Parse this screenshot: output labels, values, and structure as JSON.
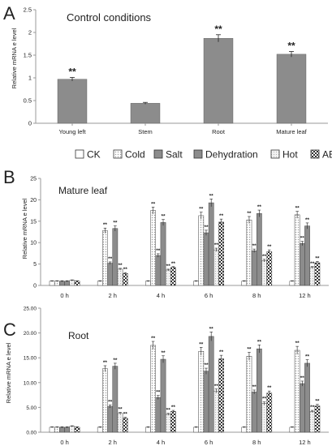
{
  "legend": {
    "entries": [
      {
        "label": "CK",
        "pattern": "white"
      },
      {
        "label": "Cold",
        "pattern": "dots"
      },
      {
        "label": "Salt",
        "pattern": "gray"
      },
      {
        "label": "Dehydration",
        "pattern": "gray"
      },
      {
        "label": "Hot",
        "pattern": "lightdots"
      },
      {
        "label": "ABA",
        "pattern": "checker"
      }
    ]
  },
  "colors": {
    "gray_bar": "#8c8c8c",
    "axis": "#9a9a9a",
    "text": "#222222"
  },
  "chart_data": [
    {
      "panel": "A",
      "type": "bar",
      "title": "Control conditions",
      "ylabel": "Relative mRNA e level",
      "ylim": [
        0,
        2.5
      ],
      "yticks": [
        "0",
        "0.5",
        "1",
        "1.5",
        "2",
        "2.5"
      ],
      "categories": [
        "Young left",
        "Stem",
        "Root",
        "Mature leaf"
      ],
      "values": [
        0.97,
        0.44,
        1.87,
        1.52
      ],
      "errors": [
        0.04,
        0.02,
        0.08,
        0.06
      ],
      "significance": [
        "**",
        "",
        "**",
        "**"
      ]
    },
    {
      "panel": "B",
      "type": "bar",
      "title": "Mature leaf",
      "ylabel": "Relative mRNA e level",
      "ylim": [
        0,
        25
      ],
      "yticks": [
        "0",
        "5",
        "10",
        "15",
        "20",
        "25"
      ],
      "categories": [
        "0 h",
        "2 h",
        "4 h",
        "6 h",
        "8 h",
        "12 h"
      ],
      "series": [
        {
          "name": "CK",
          "values": [
            1.0,
            1.0,
            1.0,
            1.0,
            1.0,
            1.0
          ],
          "errors": [
            0.1,
            0.1,
            0.1,
            0.1,
            0.1,
            0.1
          ],
          "significance": [
            "",
            "",
            "",
            "",
            "",
            ""
          ]
        },
        {
          "name": "Cold",
          "values": [
            1.0,
            12.8,
            17.5,
            16.3,
            15.3,
            16.5
          ],
          "errors": [
            0.1,
            0.6,
            0.8,
            0.8,
            0.8,
            0.8
          ],
          "significance": [
            "",
            "**",
            "**",
            "**",
            "**",
            "**"
          ]
        },
        {
          "name": "Salt",
          "values": [
            1.0,
            5.2,
            7.0,
            12.3,
            8.1,
            9.8
          ],
          "errors": [
            0.1,
            0.3,
            0.4,
            0.6,
            0.4,
            0.5
          ],
          "significance": [
            "",
            "**",
            "**",
            "**",
            "**",
            "**"
          ]
        },
        {
          "name": "Dehydration",
          "values": [
            1.0,
            13.3,
            14.7,
            19.3,
            16.8,
            13.9
          ],
          "errors": [
            0.1,
            0.6,
            0.7,
            0.9,
            0.8,
            0.7
          ],
          "significance": [
            "",
            "**",
            "**",
            "**",
            "**",
            "**"
          ]
        },
        {
          "name": "Hot",
          "values": [
            1.2,
            3.8,
            3.6,
            8.3,
            5.8,
            4.2
          ],
          "errors": [
            0.1,
            0.2,
            0.2,
            0.4,
            0.3,
            0.2
          ],
          "significance": [
            "",
            "**",
            "**",
            "**",
            "**",
            "**"
          ]
        },
        {
          "name": "ABA",
          "values": [
            1.0,
            2.8,
            4.2,
            14.8,
            7.9,
            5.3
          ],
          "errors": [
            0.1,
            0.2,
            0.2,
            0.7,
            0.4,
            0.3
          ],
          "significance": [
            "",
            "**",
            "**",
            "**",
            "**",
            "**"
          ]
        }
      ]
    },
    {
      "panel": "C",
      "type": "bar",
      "title": "Root",
      "ylabel": "Relative mRNA e level",
      "ylim": [
        0,
        25
      ],
      "yticks": [
        "0.00",
        "5.00",
        "10.00",
        "15.00",
        "20.00",
        "25.00"
      ],
      "categories": [
        "0 h",
        "2 h",
        "4 h",
        "6 h",
        "8 h",
        "12 h"
      ],
      "series": [
        {
          "name": "CK",
          "values": [
            1.0,
            1.0,
            1.0,
            1.0,
            1.0,
            1.0
          ],
          "errors": [
            0.1,
            0.1,
            0.1,
            0.1,
            0.1,
            0.1
          ],
          "significance": [
            "",
            "",
            "",
            "",
            "",
            ""
          ]
        },
        {
          "name": "Cold",
          "values": [
            1.0,
            12.8,
            17.5,
            16.3,
            15.3,
            16.5
          ],
          "errors": [
            0.1,
            0.6,
            0.8,
            0.8,
            0.8,
            0.8
          ],
          "significance": [
            "",
            "**",
            "**",
            "**",
            "**",
            "**"
          ]
        },
        {
          "name": "Salt",
          "values": [
            1.0,
            5.2,
            7.0,
            12.3,
            8.1,
            9.8
          ],
          "errors": [
            0.1,
            0.3,
            0.4,
            0.6,
            0.4,
            0.5
          ],
          "significance": [
            "",
            "**",
            "**",
            "**",
            "**",
            "**"
          ]
        },
        {
          "name": "Dehydration",
          "values": [
            1.0,
            13.3,
            14.7,
            19.3,
            16.8,
            13.9
          ],
          "errors": [
            0.1,
            0.6,
            0.7,
            0.9,
            0.8,
            0.7
          ],
          "significance": [
            "",
            "**",
            "**",
            "**",
            "**",
            "**"
          ]
        },
        {
          "name": "Hot",
          "values": [
            1.2,
            3.8,
            3.6,
            8.3,
            5.8,
            4.2
          ],
          "errors": [
            0.1,
            0.2,
            0.2,
            0.4,
            0.3,
            0.2
          ],
          "significance": [
            "",
            "**",
            "**",
            "**",
            "**",
            "**"
          ]
        },
        {
          "name": "ABA",
          "values": [
            1.0,
            2.8,
            4.2,
            14.8,
            7.9,
            5.3
          ],
          "errors": [
            0.1,
            0.2,
            0.2,
            0.7,
            0.4,
            0.3
          ],
          "significance": [
            "",
            "**",
            "**",
            "**",
            "**",
            "**"
          ]
        }
      ]
    }
  ]
}
